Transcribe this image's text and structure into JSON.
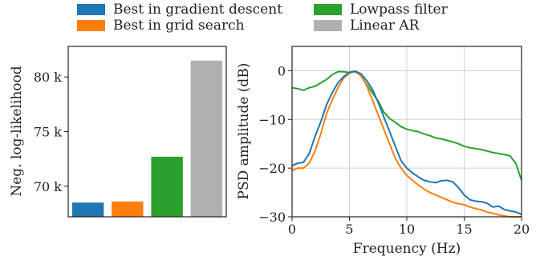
{
  "legend": {
    "items": [
      {
        "label": "Best in gradient descent",
        "color": "#1f77b4"
      },
      {
        "label": "Best in grid search",
        "color": "#ff7f0e"
      },
      {
        "label": "Lowpass filter",
        "color": "#2ca02c"
      },
      {
        "label": "Linear AR",
        "color": "#b0b0b0"
      }
    ]
  },
  "chart_data": [
    {
      "type": "bar",
      "ylabel": "Neg. log-likelihood",
      "xlabel": "",
      "ylim": [
        67200,
        82800
      ],
      "yticks": [
        70000,
        75000,
        80000
      ],
      "yticklabels": [
        "70 k",
        "75 k",
        "80 k"
      ],
      "categories": [
        "Best in gradient descent",
        "Best in grid search",
        "Lowpass filter",
        "Linear AR"
      ],
      "values": [
        68500,
        68600,
        72700,
        81500
      ],
      "colors": [
        "#1f77b4",
        "#ff7f0e",
        "#2ca02c",
        "#b0b0b0"
      ],
      "grid": false
    },
    {
      "type": "line",
      "xlabel": "Frequency (Hz)",
      "ylabel": "PSD amplitude (dB)",
      "xlim": [
        0,
        20
      ],
      "ylim": [
        -30,
        5
      ],
      "xticks": [
        0,
        5,
        10,
        15,
        20
      ],
      "yticks": [
        0,
        -10,
        -20,
        -30
      ],
      "grid": true,
      "x": [
        0,
        0.5,
        1,
        1.5,
        2,
        2.5,
        3,
        3.5,
        4,
        4.5,
        5,
        5.5,
        6,
        6.5,
        7,
        7.5,
        8,
        8.5,
        9,
        9.5,
        10,
        10.5,
        11,
        11.5,
        12,
        12.5,
        13,
        13.5,
        14,
        14.5,
        15,
        15.5,
        16,
        16.5,
        17,
        17.5,
        18,
        18.5,
        19,
        19.5,
        20
      ],
      "series": [
        {
          "name": "Best in gradient descent",
          "color": "#1f77b4",
          "values": [
            -19.5,
            -19,
            -18.8,
            -17,
            -13.5,
            -10.5,
            -7,
            -4.5,
            -2.5,
            -1.2,
            -0.3,
            -0.1,
            -0.6,
            -2,
            -3.8,
            -6.5,
            -9.5,
            -12.5,
            -15.5,
            -18.5,
            -20,
            -21,
            -21.8,
            -22.5,
            -22.8,
            -23,
            -22.6,
            -22.5,
            -22.8,
            -24,
            -25.5,
            -26.5,
            -26.8,
            -26.9,
            -27.2,
            -28,
            -27.8,
            -28.5,
            -28.8,
            -29,
            -29.5
          ]
        },
        {
          "name": "Best in grid search",
          "color": "#ff7f0e",
          "values": [
            -20.5,
            -20,
            -20,
            -19,
            -16.5,
            -13,
            -8.8,
            -6,
            -3.5,
            -1.5,
            -0.5,
            -0.1,
            -1,
            -3,
            -6,
            -9,
            -12,
            -15,
            -18,
            -20,
            -21.5,
            -22.5,
            -23.5,
            -24.3,
            -25,
            -25.5,
            -26,
            -26.5,
            -27,
            -27.3,
            -27.5,
            -28,
            -28.3,
            -28.6,
            -29,
            -29.3,
            -29.6,
            -29.8,
            -30,
            -30,
            -30.2
          ]
        },
        {
          "name": "Lowpass filter",
          "color": "#2ca02c",
          "values": [
            -3.5,
            -3.7,
            -4,
            -3.5,
            -3.2,
            -2.5,
            -1.8,
            -0.8,
            -0.2,
            -0.2,
            -0.4,
            -0.2,
            -1,
            -2.8,
            -4.5,
            -6.2,
            -8.5,
            -9.8,
            -10.6,
            -11.5,
            -12,
            -12.3,
            -12.5,
            -13,
            -13.3,
            -13.8,
            -14,
            -14.3,
            -14.6,
            -15,
            -15.5,
            -15.8,
            -16,
            -16.2,
            -16.5,
            -16.8,
            -17,
            -17.2,
            -17.5,
            -19,
            -22.5
          ]
        }
      ]
    }
  ]
}
